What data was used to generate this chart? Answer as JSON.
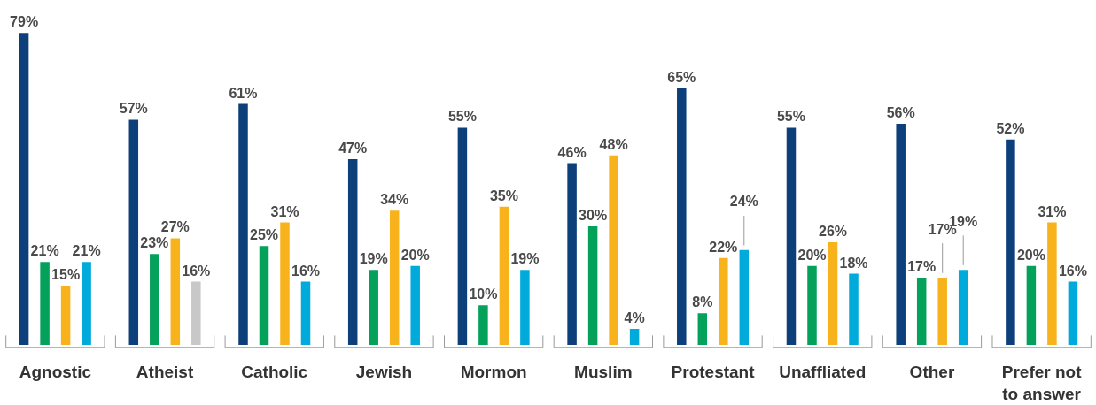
{
  "chart_data": {
    "type": "bar",
    "categories": [
      "Agnostic",
      "Atheist",
      "Catholic",
      "Jewish",
      "Mormon",
      "Muslim",
      "Protestant",
      "Unaffliated",
      "Other",
      "Prefer not to answer"
    ],
    "series": [
      {
        "color": "#0d3f7a",
        "values": [
          79,
          57,
          61,
          47,
          55,
          46,
          65,
          55,
          56,
          52
        ],
        "value_labels": [
          "79%",
          "57%",
          "61%",
          "47%",
          "55%",
          "46%",
          "65%",
          "55%",
          "56%",
          "52%"
        ]
      },
      {
        "color": "#04a15b",
        "values": [
          21,
          23,
          25,
          19,
          10,
          30,
          8,
          20,
          17,
          20
        ],
        "value_labels": [
          "21%",
          "23%",
          "25%",
          "19%",
          "10%",
          "30%",
          "8%",
          "20%",
          "17%",
          "20%"
        ]
      },
      {
        "color": "#f8b31c",
        "values": [
          15,
          27,
          31,
          34,
          35,
          48,
          22,
          26,
          17,
          31
        ],
        "value_labels": [
          "15%",
          "27%",
          "31%",
          "34%",
          "35%",
          "48%",
          "22%",
          "26%",
          "17%",
          "31%"
        ]
      },
      {
        "color": "#00abdc",
        "colors": [
          "#00abdc",
          "#c8c8c8",
          "#00abdc",
          "#00abdc",
          "#00abdc",
          "#00abdc",
          "#00abdc",
          "#00abdc",
          "#00abdc",
          "#00abdc"
        ],
        "values": [
          21,
          16,
          16,
          20,
          19,
          4,
          24,
          18,
          19,
          16
        ],
        "value_labels": [
          "21%",
          "16%",
          "16%",
          "20%",
          "19%",
          "4%",
          "24%",
          "18%",
          "19%",
          "16%"
        ]
      }
    ],
    "grid": false,
    "tick_labels": "x"
  }
}
